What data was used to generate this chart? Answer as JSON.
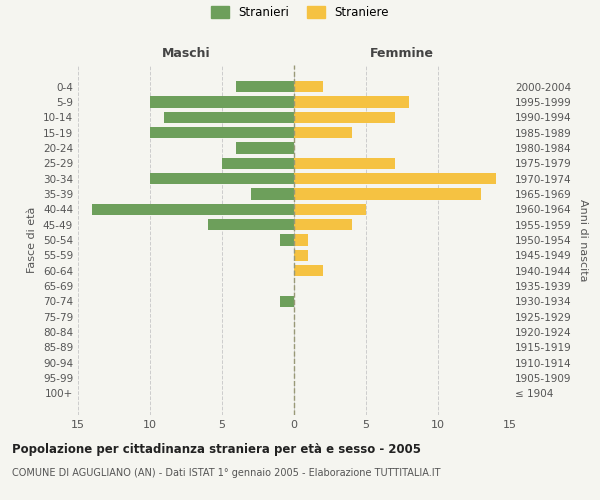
{
  "age_groups": [
    "100+",
    "95-99",
    "90-94",
    "85-89",
    "80-84",
    "75-79",
    "70-74",
    "65-69",
    "60-64",
    "55-59",
    "50-54",
    "45-49",
    "40-44",
    "35-39",
    "30-34",
    "25-29",
    "20-24",
    "15-19",
    "10-14",
    "5-9",
    "0-4"
  ],
  "birth_years": [
    "≤ 1904",
    "1905-1909",
    "1910-1914",
    "1915-1919",
    "1920-1924",
    "1925-1929",
    "1930-1934",
    "1935-1939",
    "1940-1944",
    "1945-1949",
    "1950-1954",
    "1955-1959",
    "1960-1964",
    "1965-1969",
    "1970-1974",
    "1975-1979",
    "1980-1984",
    "1985-1989",
    "1990-1994",
    "1995-1999",
    "2000-2004"
  ],
  "males": [
    0,
    0,
    0,
    0,
    0,
    0,
    1,
    0,
    0,
    0,
    1,
    6,
    14,
    3,
    10,
    5,
    4,
    10,
    9,
    10,
    4
  ],
  "females": [
    0,
    0,
    0,
    0,
    0,
    0,
    0,
    0,
    2,
    1,
    1,
    4,
    5,
    13,
    14,
    7,
    0,
    4,
    7,
    8,
    2
  ],
  "male_color": "#6d9f5b",
  "female_color": "#f5c242",
  "background_color": "#f5f5f0",
  "grid_color": "#cccccc",
  "title": "Popolazione per cittadinanza straniera per età e sesso - 2005",
  "subtitle": "COMUNE DI AGUGLIANO (AN) - Dati ISTAT 1° gennaio 2005 - Elaborazione TUTTITALIA.IT",
  "xlabel_left": "Maschi",
  "xlabel_right": "Femmine",
  "ylabel_left": "Fasce di età",
  "ylabel_right": "Anni di nascita",
  "xlim": 15,
  "legend_stranieri": "Stranieri",
  "legend_straniere": "Straniere"
}
